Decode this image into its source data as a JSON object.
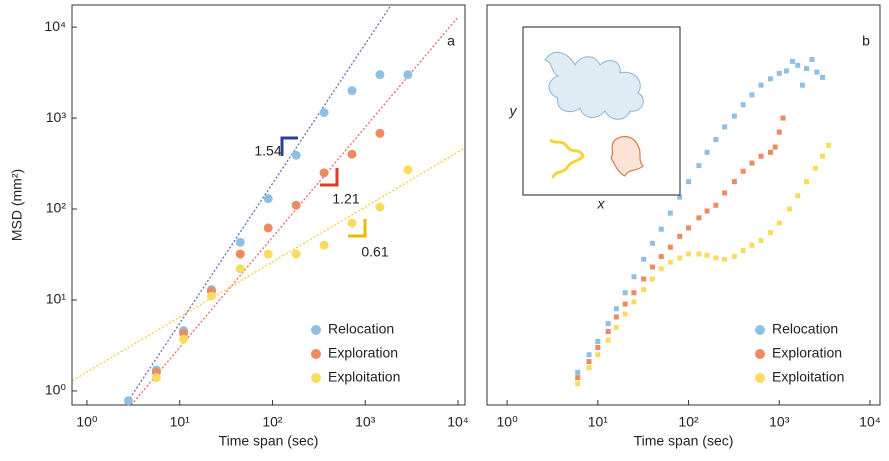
{
  "chart_data": [
    {
      "type": "scatter",
      "panel_label": "a",
      "xlabel": "Time span (sec)",
      "ylabel": "MSD (mm²)",
      "log_x": true,
      "log_y": true,
      "xlim": [
        0.69,
        11900
      ],
      "ylim": [
        0.7,
        17500
      ],
      "xticks": [
        {
          "value": 1,
          "label": "10⁰"
        },
        {
          "value": 10,
          "label": "10¹"
        },
        {
          "value": 100,
          "label": "10²"
        },
        {
          "value": 1000,
          "label": "10³"
        },
        {
          "value": 10000,
          "label": "10⁴"
        }
      ],
      "yticks": [
        {
          "value": 1,
          "label": "10⁰"
        },
        {
          "value": 10,
          "label": "10¹"
        },
        {
          "value": 100,
          "label": "10²"
        },
        {
          "value": 1000,
          "label": "10³"
        },
        {
          "value": 10000,
          "label": "10⁴"
        }
      ],
      "legend": "lower right",
      "series": [
        {
          "name": "Relocation",
          "color": "#8fc0e3",
          "x": [
            2.8,
            5.6,
            11,
            22,
            45,
            90,
            180,
            360,
            720,
            1440,
            2880
          ],
          "values": [
            0.78,
            1.7,
            4.6,
            13,
            43,
            130,
            390,
            1150,
            2000,
            3000,
            3000
          ]
        },
        {
          "name": "Exploration",
          "color": "#ec8a60",
          "x": [
            5.6,
            11,
            22,
            45,
            90,
            180,
            360,
            720,
            1440
          ],
          "values": [
            1.6,
            4.3,
            12.5,
            32,
            62,
            110,
            250,
            400,
            680
          ]
        },
        {
          "name": "Exploitation",
          "color": "#f8dc60",
          "x": [
            5.6,
            11,
            22,
            45,
            90,
            180,
            360,
            720,
            1440,
            2880
          ],
          "values": [
            1.4,
            3.7,
            11,
            22,
            32,
            32,
            40,
            70,
            105,
            270
          ]
        }
      ],
      "fits": [
        {
          "slope": 1.54,
          "color": "#2b3f9a",
          "x": [
            2.6,
            1900
          ],
          "values": [
            0.7,
            17500
          ]
        },
        {
          "slope": 1.21,
          "color": "#e03a2a",
          "x": [
            3,
            10000
          ],
          "values": [
            0.7,
            12900
          ]
        },
        {
          "slope": 0.61,
          "color": "#f5b800",
          "x": [
            0.7,
            11900
          ],
          "values": [
            1.3,
            470
          ]
        }
      ]
    },
    {
      "type": "scatter",
      "panel_label": "b",
      "xlabel": "Time span (sec)",
      "log_x": true,
      "log_y": true,
      "xlim": [
        0.6,
        12900
      ],
      "ylim": [
        0.7,
        17500
      ],
      "xticks": [
        {
          "value": 1,
          "label": "10⁰"
        },
        {
          "value": 10,
          "label": "10¹"
        },
        {
          "value": 100,
          "label": "10²"
        },
        {
          "value": 1000,
          "label": "10³"
        },
        {
          "value": 10000,
          "label": "10⁴"
        }
      ],
      "inset_xlabel": "x",
      "inset_ylabel": "y",
      "legend": "lower right",
      "series": [
        {
          "name": "Relocation",
          "color": "#8fc0e3",
          "x": [
            6,
            8,
            10,
            13,
            16,
            20,
            25,
            32,
            40,
            50,
            63,
            80,
            100,
            130,
            160,
            200,
            250,
            320,
            400,
            500,
            630,
            800,
            1000,
            1200,
            1400,
            1600,
            1800,
            2000,
            2300,
            2600,
            3000
          ],
          "values": [
            1.6,
            2.5,
            3.5,
            5.5,
            8,
            12,
            18,
            28,
            42,
            60,
            90,
            135,
            200,
            300,
            420,
            580,
            800,
            1050,
            1400,
            1800,
            2300,
            2700,
            3100,
            3300,
            4200,
            3800,
            2300,
            3500,
            4400,
            3200,
            2800
          ]
        },
        {
          "name": "Exploration",
          "color": "#ec8a60",
          "x": [
            6,
            8,
            10,
            13,
            16,
            20,
            25,
            32,
            40,
            50,
            63,
            80,
            100,
            130,
            160,
            200,
            250,
            320,
            400,
            500,
            630,
            800,
            900,
            1000,
            1100
          ],
          "values": [
            1.4,
            2.1,
            3,
            4.5,
            6.5,
            9,
            12,
            17,
            23,
            30,
            38,
            50,
            62,
            80,
            95,
            110,
            150,
            200,
            260,
            320,
            380,
            420,
            480,
            700,
            1000
          ]
        },
        {
          "name": "Exploitation",
          "color": "#f8dc60",
          "x": [
            6,
            8,
            10,
            13,
            16,
            20,
            25,
            32,
            40,
            50,
            63,
            80,
            100,
            130,
            160,
            200,
            250,
            320,
            400,
            500,
            630,
            800,
            1000,
            1300,
            1600,
            2000,
            2500,
            3000,
            3500
          ],
          "values": [
            1.2,
            1.8,
            2.5,
            3.6,
            5,
            7,
            9.5,
            13,
            17,
            22,
            26,
            29,
            32,
            32,
            31,
            29,
            28,
            30,
            35,
            40,
            45,
            55,
            70,
            100,
            140,
            200,
            280,
            380,
            500
          ]
        }
      ]
    }
  ]
}
